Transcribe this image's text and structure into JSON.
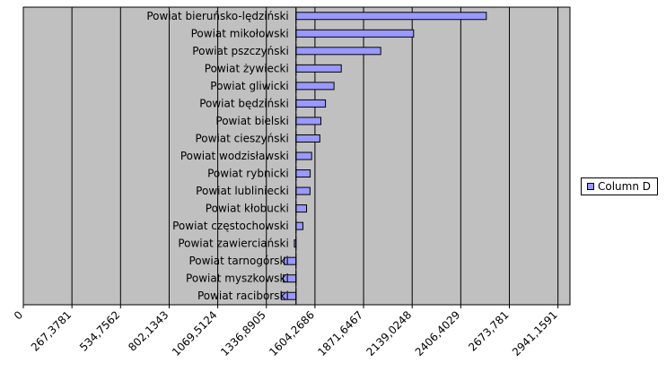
{
  "chart_data": {
    "type": "bar",
    "orientation": "horizontal",
    "title": "",
    "xlabel": "",
    "ylabel": "",
    "categories": [
      "Powiat bieruńsko-lędziński",
      "Powiat mikołowski",
      "Powiat pszczyński",
      "Powiat żywiecki",
      "Powiat gliwicki",
      "Powiat będziński",
      "Powiat bielski",
      "Powiat cieszyński",
      "Powiat wodzisławski",
      "Powiat rybnicki",
      "Powiat lubliniecki",
      "Powiat kłobucki",
      "Powiat częstochowski",
      "Powiat zawierciański",
      "Powiat tarnogórski",
      "Powiat myszkowski",
      "Powiat raciborski"
    ],
    "series": [
      {
        "name": "Column D",
        "color": "#9999ff",
        "values": [
          2547,
          2147,
          1966,
          1749,
          1709,
          1662,
          1637,
          1631,
          1586,
          1578,
          1577,
          1558,
          1538,
          1491,
          1435,
          1430,
          1420
        ]
      }
    ],
    "x_ticks": [
      "0",
      "267,3781",
      "534,7562",
      "802,1343",
      "1069,5124",
      "1336,8905",
      "1604,2686",
      "1871,6467",
      "2139,0248",
      "2406,4029",
      "2673,781",
      "2941,1591"
    ],
    "xlim": [
      0,
      2941.1591
    ],
    "x_tick_step": 267.3781,
    "grid": true,
    "legend_position": "right",
    "plot_background": "#c0c0c0"
  }
}
